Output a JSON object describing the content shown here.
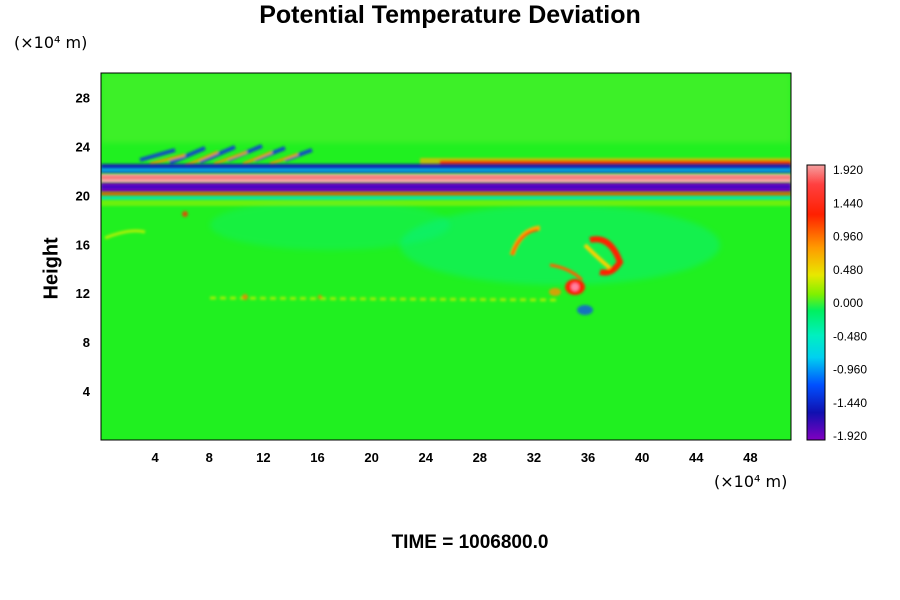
{
  "chart_data": {
    "type": "heatmap",
    "title": "Potential Temperature Deviation",
    "ylabel": "Height",
    "x_unit_label": "(×10⁴ m)",
    "y_unit_label": "(×10⁴ m)",
    "x_ticks": [
      4,
      8,
      12,
      16,
      20,
      24,
      28,
      32,
      36,
      40,
      44,
      48
    ],
    "y_ticks": [
      4,
      8,
      12,
      16,
      20,
      24,
      28
    ],
    "xlim": [
      0,
      51
    ],
    "ylim": [
      0,
      30
    ],
    "colorbar": {
      "ticks": [
        "1.920",
        "1.440",
        "0.960",
        "0.480",
        "0.000",
        "-0.480",
        "-0.960",
        "-1.440",
        "-1.920"
      ],
      "range": [
        -1.92,
        1.92
      ]
    },
    "features": [
      {
        "name": "upper-warm-band",
        "y": 21.3,
        "value": 1.9
      },
      {
        "name": "upper-cold-band",
        "y": 20.3,
        "value": -1.9
      },
      {
        "name": "secondary-warm-band",
        "y": 22.6,
        "value": 1.4
      },
      {
        "name": "secondary-cold-band",
        "y": 22.0,
        "value": -1.5
      },
      {
        "name": "warm-plume",
        "x": 38,
        "y": 15,
        "value": 1.6
      },
      {
        "name": "warm-blob",
        "x": 35,
        "y": 12.5,
        "value": 1.8
      }
    ]
  },
  "footer": {
    "time_label": "TIME = 1006800.0"
  }
}
